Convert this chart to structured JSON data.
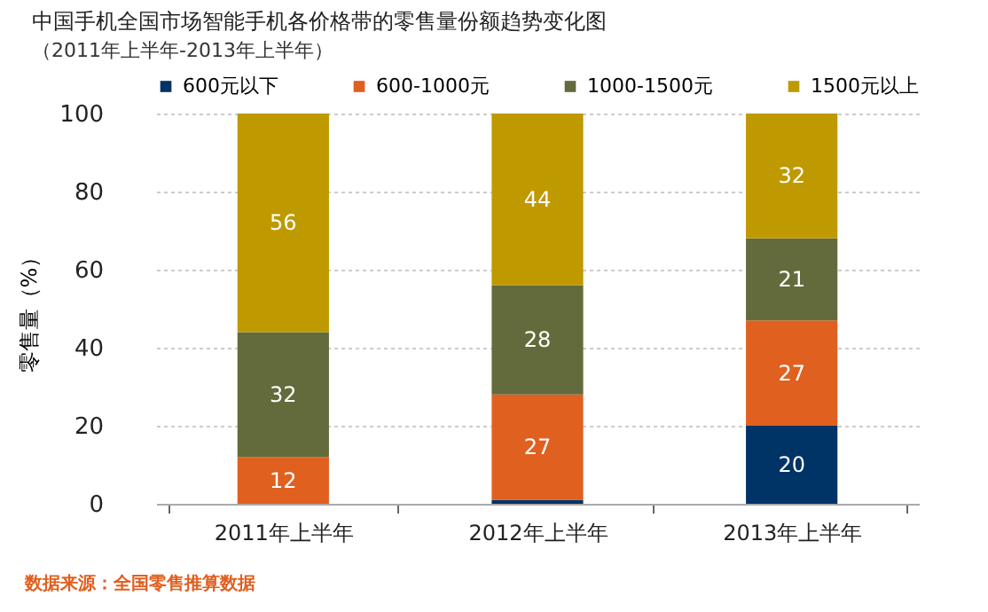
{
  "chart_data": {
    "type": "bar",
    "stacked": true,
    "title": "中国手机全国市场智能手机各价格带的零售量份额趋势变化图",
    "subtitle": "（2011年上半年-2013年上半年）",
    "ylabel": "零售量（%）",
    "categories": [
      "2011年上半年",
      "2012年上半年",
      "2013年上半年"
    ],
    "series": [
      {
        "name": "600元以下",
        "color": "#003366",
        "values": [
          0,
          1,
          20
        ],
        "value_labels": [
          null,
          null,
          "20"
        ]
      },
      {
        "name": "600-1000元",
        "color": "#e06020",
        "values": [
          12,
          27,
          27
        ],
        "value_labels": [
          "12",
          "27",
          "27"
        ]
      },
      {
        "name": "1000-1500元",
        "color": "#636b3c",
        "values": [
          32,
          28,
          21
        ],
        "value_labels": [
          "32",
          "28",
          "21"
        ]
      },
      {
        "name": "1500元以上",
        "color": "#bf9900",
        "values": [
          56,
          44,
          32
        ],
        "value_labels": [
          "56",
          "44",
          "32"
        ]
      }
    ],
    "ylim": [
      0,
      100
    ],
    "yticks": [
      0,
      20,
      40,
      60,
      80,
      100
    ],
    "grid": "y",
    "legend": "top",
    "annotations": [
      "数据来源：全国零售推算数据"
    ]
  }
}
